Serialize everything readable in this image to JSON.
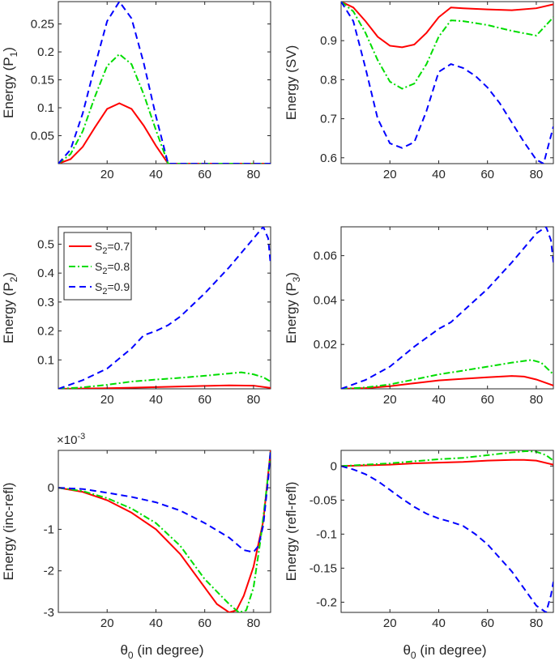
{
  "figure": {
    "xlabel_prefix": "θ",
    "xlabel_sub": "0",
    "xlabel_suffix": " (in degree)"
  },
  "legend": [
    {
      "label_prefix": "S",
      "label_sub": "2",
      "label_suffix": "=0.7",
      "color": "#ff0000",
      "dash": "solid"
    },
    {
      "label_prefix": "S",
      "label_sub": "2",
      "label_suffix": "=0.8",
      "color": "#00dd00",
      "dash": "dashdot"
    },
    {
      "label_prefix": "S",
      "label_sub": "2",
      "label_suffix": "=0.9",
      "color": "#0000ff",
      "dash": "dashed"
    }
  ],
  "chart_data": [
    {
      "type": "line",
      "ylabel_prefix": "Energy (P",
      "ylabel_sub": "1",
      "ylabel_suffix": ")",
      "xlim": [
        0,
        87
      ],
      "ylim": [
        0,
        0.29
      ],
      "xticks": [
        20,
        40,
        60,
        80
      ],
      "xtick_labels": [
        "20",
        "40",
        "60",
        "80"
      ],
      "yticks": [
        0.05,
        0.1,
        0.15,
        0.2,
        0.25
      ],
      "ytick_labels": [
        "0.05",
        "0.1",
        "0.15",
        "0.2",
        "0.25"
      ],
      "show_xticklabels": true,
      "series": [
        {
          "name": "S2=0.7",
          "x": [
            0,
            5,
            10,
            15,
            20,
            25,
            30,
            35,
            40,
            45,
            50,
            60,
            70,
            80,
            87
          ],
          "y": [
            0,
            0.008,
            0.03,
            0.065,
            0.098,
            0.108,
            0.098,
            0.068,
            0.032,
            0,
            0,
            0,
            0,
            0,
            0
          ]
        },
        {
          "name": "S2=0.8",
          "x": [
            0,
            5,
            10,
            15,
            20,
            25,
            30,
            35,
            40,
            45,
            50,
            60,
            70,
            80,
            87
          ],
          "y": [
            0,
            0.017,
            0.058,
            0.12,
            0.175,
            0.196,
            0.178,
            0.124,
            0.06,
            0,
            0,
            0,
            0,
            0,
            0
          ]
        },
        {
          "name": "S2=0.9",
          "x": [
            0,
            5,
            10,
            15,
            20,
            25,
            30,
            35,
            40,
            45,
            50,
            60,
            70,
            80,
            87
          ],
          "y": [
            0,
            0.025,
            0.09,
            0.175,
            0.255,
            0.29,
            0.26,
            0.18,
            0.085,
            0,
            0,
            0,
            0,
            0,
            0
          ]
        }
      ]
    },
    {
      "type": "line",
      "ylabel_prefix": "Energy (SV)",
      "ylabel_sub": "",
      "ylabel_suffix": "",
      "xlim": [
        0,
        87
      ],
      "ylim": [
        0.585,
        1.0
      ],
      "xticks": [
        20,
        40,
        60,
        80
      ],
      "xtick_labels": [
        "20",
        "40",
        "60",
        "80"
      ],
      "yticks": [
        0.6,
        0.7,
        0.8,
        0.9
      ],
      "ytick_labels": [
        "0.6",
        "0.7",
        "0.8",
        "0.9"
      ],
      "show_xticklabels": true,
      "series": [
        {
          "name": "S2=0.7",
          "x": [
            0,
            5,
            10,
            15,
            20,
            25,
            30,
            35,
            40,
            45,
            50,
            60,
            70,
            80,
            87
          ],
          "y": [
            1.0,
            0.985,
            0.95,
            0.91,
            0.887,
            0.883,
            0.89,
            0.92,
            0.96,
            0.985,
            0.983,
            0.98,
            0.978,
            0.983,
            0.993
          ]
        },
        {
          "name": "S2=0.8",
          "x": [
            0,
            5,
            10,
            15,
            20,
            25,
            30,
            35,
            40,
            45,
            50,
            60,
            70,
            80,
            87
          ],
          "y": [
            1.0,
            0.975,
            0.92,
            0.85,
            0.795,
            0.777,
            0.79,
            0.84,
            0.91,
            0.952,
            0.95,
            0.94,
            0.925,
            0.913,
            0.96
          ]
        },
        {
          "name": "S2=0.9",
          "x": [
            0,
            5,
            10,
            15,
            20,
            25,
            30,
            35,
            40,
            45,
            50,
            55,
            60,
            65,
            70,
            75,
            80,
            83,
            87
          ],
          "y": [
            1.0,
            0.95,
            0.83,
            0.7,
            0.637,
            0.625,
            0.64,
            0.72,
            0.82,
            0.84,
            0.83,
            0.81,
            0.78,
            0.74,
            0.69,
            0.64,
            0.595,
            0.585,
            0.68
          ]
        }
      ]
    },
    {
      "type": "line",
      "ylabel_prefix": "Energy (P",
      "ylabel_sub": "2",
      "ylabel_suffix": ")",
      "xlim": [
        0,
        87
      ],
      "ylim": [
        0,
        0.56
      ],
      "xticks": [
        20,
        40,
        60,
        80
      ],
      "xtick_labels": [
        "20",
        "40",
        "60",
        "80"
      ],
      "yticks": [
        0.1,
        0.2,
        0.3,
        0.4,
        0.5
      ],
      "ytick_labels": [
        "0.1",
        "0.2",
        "0.3",
        "0.4",
        "0.5"
      ],
      "show_xticklabels": true,
      "series": [
        {
          "name": "S2=0.7",
          "x": [
            0,
            10,
            20,
            30,
            40,
            50,
            60,
            70,
            80,
            87
          ],
          "y": [
            0,
            0.001,
            0.002,
            0.004,
            0.006,
            0.008,
            0.01,
            0.012,
            0.011,
            0.003
          ]
        },
        {
          "name": "S2=0.8",
          "x": [
            0,
            10,
            20,
            30,
            40,
            50,
            60,
            70,
            75,
            80,
            84,
            87
          ],
          "y": [
            0,
            0.005,
            0.014,
            0.025,
            0.032,
            0.038,
            0.045,
            0.053,
            0.057,
            0.05,
            0.04,
            0.025
          ]
        },
        {
          "name": "S2=0.9",
          "x": [
            0,
            10,
            20,
            30,
            35,
            40,
            45,
            50,
            60,
            70,
            80,
            84,
            86,
            87
          ],
          "y": [
            0,
            0.03,
            0.07,
            0.14,
            0.185,
            0.2,
            0.22,
            0.25,
            0.33,
            0.42,
            0.52,
            0.56,
            0.52,
            0.43
          ]
        }
      ]
    },
    {
      "type": "line",
      "ylabel_prefix": "Energy (P",
      "ylabel_sub": "3",
      "ylabel_suffix": ")",
      "xlim": [
        0,
        87
      ],
      "ylim": [
        0,
        0.073
      ],
      "xticks": [
        20,
        40,
        60,
        80
      ],
      "xtick_labels": [
        "20",
        "40",
        "60",
        "80"
      ],
      "yticks": [
        0.02,
        0.04,
        0.06
      ],
      "ytick_labels": [
        "0.02",
        "0.04",
        "0.06"
      ],
      "show_xticklabels": true,
      "series": [
        {
          "name": "S2=0.7",
          "x": [
            0,
            10,
            20,
            30,
            40,
            50,
            60,
            70,
            75,
            80,
            87
          ],
          "y": [
            0,
            0.0003,
            0.0012,
            0.0025,
            0.0038,
            0.0045,
            0.0052,
            0.0058,
            0.0055,
            0.0042,
            0.0015
          ]
        },
        {
          "name": "S2=0.8",
          "x": [
            0,
            10,
            20,
            30,
            40,
            50,
            60,
            70,
            78,
            82,
            87
          ],
          "y": [
            0,
            0.0006,
            0.002,
            0.0042,
            0.0065,
            0.0082,
            0.01,
            0.0118,
            0.013,
            0.0118,
            0.0065
          ]
        },
        {
          "name": "S2=0.9",
          "x": [
            0,
            10,
            20,
            30,
            40,
            45,
            50,
            60,
            70,
            80,
            84,
            86,
            87
          ],
          "y": [
            0,
            0.004,
            0.01,
            0.019,
            0.027,
            0.03,
            0.035,
            0.045,
            0.057,
            0.07,
            0.073,
            0.067,
            0.057
          ]
        }
      ]
    },
    {
      "type": "line",
      "ylabel_prefix": "Energy (inc-refl)",
      "ylabel_sub": "",
      "ylabel_suffix": "",
      "exponent_prefix": "×10",
      "exponent_power": "-3",
      "xlim": [
        0,
        87
      ],
      "ylim": [
        -3,
        0.9
      ],
      "xticks": [
        20,
        40,
        60,
        80
      ],
      "xtick_labels": [
        "20",
        "40",
        "60",
        "80"
      ],
      "yticks": [
        -3,
        -2,
        -1,
        0
      ],
      "ytick_labels": [
        "-3",
        "-2",
        "-1",
        "0"
      ],
      "show_xticklabels": true,
      "series": [
        {
          "name": "S2=0.7",
          "x": [
            0,
            10,
            20,
            30,
            40,
            50,
            60,
            65,
            70,
            73,
            76,
            80,
            84,
            87
          ],
          "y": [
            0,
            -0.1,
            -0.3,
            -0.6,
            -1.0,
            -1.6,
            -2.4,
            -2.8,
            -3.0,
            -2.95,
            -2.6,
            -1.9,
            -0.8,
            0.9
          ]
        },
        {
          "name": "S2=0.8",
          "x": [
            0,
            10,
            20,
            30,
            40,
            50,
            60,
            70,
            74,
            77,
            80,
            83,
            86,
            87
          ],
          "y": [
            0,
            -0.08,
            -0.25,
            -0.5,
            -0.85,
            -1.4,
            -2.2,
            -2.8,
            -3.0,
            -2.95,
            -2.4,
            -1.2,
            0.3,
            0.9
          ]
        },
        {
          "name": "S2=0.9",
          "x": [
            0,
            10,
            20,
            30,
            40,
            50,
            60,
            70,
            76,
            80,
            82,
            84,
            86,
            87
          ],
          "y": [
            0,
            -0.03,
            -0.12,
            -0.22,
            -0.35,
            -0.55,
            -0.85,
            -1.2,
            -1.5,
            -1.55,
            -1.4,
            -0.9,
            0.2,
            0.9
          ]
        }
      ]
    },
    {
      "type": "line",
      "ylabel_prefix": "Energy (refl-refl)",
      "ylabel_sub": "",
      "ylabel_suffix": "",
      "xlim": [
        0,
        87
      ],
      "ylim": [
        -0.215,
        0.023
      ],
      "xticks": [
        20,
        40,
        60,
        80
      ],
      "xtick_labels": [
        "20",
        "40",
        "60",
        "80"
      ],
      "yticks": [
        -0.2,
        -0.15,
        -0.1,
        -0.05,
        0
      ],
      "ytick_labels": [
        "-0.2",
        "-0.15",
        "-0.1",
        "-0.05",
        "0"
      ],
      "show_xticklabels": true,
      "series": [
        {
          "name": "S2=0.7",
          "x": [
            0,
            10,
            20,
            30,
            40,
            50,
            60,
            70,
            75,
            80,
            87
          ],
          "y": [
            0,
            0.001,
            0.002,
            0.004,
            0.005,
            0.006,
            0.008,
            0.009,
            0.009,
            0.008,
            0.002
          ]
        },
        {
          "name": "S2=0.8",
          "x": [
            0,
            10,
            20,
            30,
            40,
            50,
            60,
            70,
            76,
            80,
            84,
            87
          ],
          "y": [
            0,
            0.002,
            0.004,
            0.007,
            0.01,
            0.012,
            0.016,
            0.02,
            0.022,
            0.021,
            0.016,
            0.008
          ]
        },
        {
          "name": "S2=0.9",
          "x": [
            0,
            5,
            10,
            15,
            20,
            25,
            30,
            35,
            40,
            45,
            50,
            55,
            60,
            65,
            70,
            75,
            80,
            84,
            86,
            87
          ],
          "y": [
            0,
            -0.005,
            -0.012,
            -0.022,
            -0.035,
            -0.048,
            -0.06,
            -0.07,
            -0.077,
            -0.082,
            -0.088,
            -0.1,
            -0.115,
            -0.135,
            -0.155,
            -0.18,
            -0.205,
            -0.215,
            -0.19,
            -0.17
          ]
        }
      ]
    }
  ]
}
